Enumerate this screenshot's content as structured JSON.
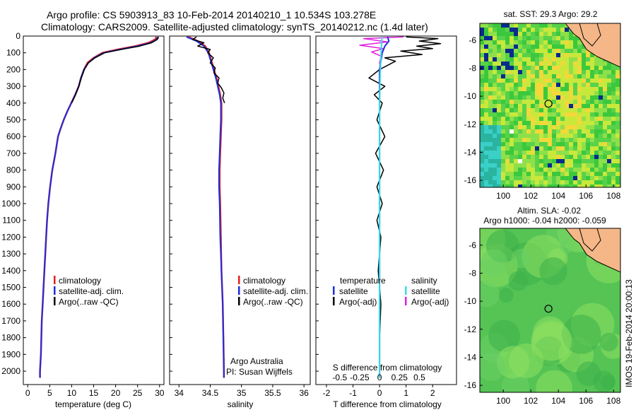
{
  "header": {
    "title_line1": "Argo profile: CS 5903913_83 10-Feb-2014 20140210_1 10.534S 103.278E",
    "title_line2": "Climatology: CARS2009. Satellite-adjusted climatology: synTS_20140212.nc (1.4d later)"
  },
  "side_stamp": "IMOS 19-Feb-2014 20:00:13",
  "colors": {
    "climatology": "#e02020",
    "satellite": "#1c2ee0",
    "argo": "#000000",
    "salinity_satellite": "#33dde6",
    "salinity_argo": "#e020e0",
    "coast": "#f5b787"
  },
  "chart_data": [
    {
      "type": "line",
      "id": "temperature",
      "xlabel": "temperature (deg C)",
      "xlim": [
        -1,
        31
      ],
      "xticks": [
        0,
        5,
        10,
        15,
        20,
        25,
        30
      ],
      "ylim": [
        0,
        2080
      ],
      "yticks": [
        0,
        100,
        200,
        300,
        400,
        500,
        600,
        700,
        800,
        900,
        1000,
        1100,
        1200,
        1300,
        1400,
        1500,
        1600,
        1700,
        1800,
        1900,
        2000
      ],
      "legend": [
        "climatology",
        "satellite-adj. clim.",
        "Argo(..raw -QC)"
      ],
      "series": [
        {
          "name": "climatology",
          "points": [
            [
              29.3,
              5
            ],
            [
              29,
              20
            ],
            [
              27.5,
              40
            ],
            [
              24.5,
              60
            ],
            [
              20.5,
              80
            ],
            [
              17,
              100
            ],
            [
              15,
              130
            ],
            [
              13.6,
              160
            ],
            [
              12.8,
              200
            ],
            [
              12.1,
              250
            ],
            [
              11.6,
              300
            ],
            [
              10.8,
              350
            ],
            [
              9.9,
              400
            ],
            [
              9,
              450
            ],
            [
              8.2,
              500
            ],
            [
              7.5,
              550
            ],
            [
              6.9,
              600
            ],
            [
              6.3,
              700
            ],
            [
              5.6,
              800
            ],
            [
              5.1,
              900
            ],
            [
              4.7,
              1000
            ],
            [
              4.4,
              1100
            ],
            [
              4.2,
              1200
            ],
            [
              4,
              1300
            ],
            [
              3.8,
              1400
            ],
            [
              3.6,
              1500
            ],
            [
              3.4,
              1600
            ],
            [
              3.2,
              1700
            ],
            [
              3.1,
              1800
            ],
            [
              3,
              1900
            ],
            [
              2.8,
              2000
            ],
            [
              2.8,
              2040
            ]
          ]
        },
        {
          "name": "satellite-adj. clim.",
          "points": [
            [
              29.6,
              5
            ],
            [
              29.4,
              20
            ],
            [
              28,
              40
            ],
            [
              25,
              60
            ],
            [
              21,
              80
            ],
            [
              17.3,
              100
            ],
            [
              15.2,
              130
            ],
            [
              13.8,
              160
            ],
            [
              12.8,
              200
            ],
            [
              12.1,
              250
            ],
            [
              11.6,
              300
            ],
            [
              10.8,
              350
            ],
            [
              9.9,
              400
            ],
            [
              9,
              450
            ],
            [
              8.2,
              500
            ],
            [
              7.5,
              550
            ],
            [
              6.9,
              600
            ],
            [
              6.3,
              700
            ],
            [
              5.6,
              800
            ],
            [
              5.1,
              900
            ],
            [
              4.7,
              1000
            ],
            [
              4.4,
              1100
            ],
            [
              4.2,
              1200
            ],
            [
              4,
              1300
            ],
            [
              3.8,
              1400
            ],
            [
              3.6,
              1500
            ],
            [
              3.4,
              1600
            ],
            [
              3.2,
              1700
            ],
            [
              3.1,
              1800
            ],
            [
              3,
              1900
            ],
            [
              2.8,
              2000
            ],
            [
              2.8,
              2040
            ]
          ]
        },
        {
          "name": "Argo(..raw -QC)",
          "points": [
            [
              29.8,
              5
            ],
            [
              29.5,
              20
            ],
            [
              28.2,
              40
            ],
            [
              25.5,
              60
            ],
            [
              21.2,
              80
            ],
            [
              17.5,
              100
            ],
            [
              15.3,
              130
            ],
            [
              13.8,
              160
            ],
            [
              12.9,
              200
            ],
            [
              12.2,
              250
            ],
            [
              11.6,
              300
            ],
            [
              10.9,
              350
            ],
            [
              10,
              400
            ]
          ]
        }
      ]
    },
    {
      "type": "line",
      "id": "salinity",
      "xlabel": "salinity",
      "xlim": [
        33.85,
        36.1
      ],
      "xticks": [
        34,
        34.5,
        35,
        35.5,
        36
      ],
      "ylim": [
        0,
        2080
      ],
      "legend": [
        "climatology",
        "satellite-adj. clim.",
        "Argo(..raw -QC)"
      ],
      "annotations": [
        "Argo Australia",
        "PI: Susan Wijffels"
      ],
      "series": [
        {
          "name": "climatology",
          "points": [
            [
              34.15,
              5
            ],
            [
              34.3,
              30
            ],
            [
              34.42,
              60
            ],
            [
              34.48,
              100
            ],
            [
              34.52,
              150
            ],
            [
              34.56,
              200
            ],
            [
              34.6,
              250
            ],
            [
              34.63,
              300
            ],
            [
              34.66,
              350
            ],
            [
              34.68,
              400
            ],
            [
              34.68,
              500
            ],
            [
              34.67,
              600
            ],
            [
              34.66,
              700
            ],
            [
              34.65,
              800
            ],
            [
              34.65,
              900
            ],
            [
              34.66,
              1000
            ],
            [
              34.67,
              1200
            ],
            [
              34.68,
              1400
            ],
            [
              34.69,
              1500
            ],
            [
              34.7,
              1600
            ],
            [
              34.71,
              1800
            ],
            [
              34.72,
              2000
            ],
            [
              34.72,
              2040
            ]
          ]
        },
        {
          "name": "satellite-adj. clim.",
          "points": [
            [
              34.12,
              5
            ],
            [
              34.28,
              30
            ],
            [
              34.4,
              60
            ],
            [
              34.47,
              100
            ],
            [
              34.51,
              150
            ],
            [
              34.55,
              200
            ],
            [
              34.59,
              250
            ],
            [
              34.62,
              300
            ],
            [
              34.65,
              350
            ],
            [
              34.67,
              400
            ],
            [
              34.67,
              500
            ],
            [
              34.66,
              600
            ],
            [
              34.65,
              700
            ],
            [
              34.64,
              800
            ],
            [
              34.64,
              900
            ],
            [
              34.65,
              1000
            ],
            [
              34.66,
              1200
            ],
            [
              34.68,
              1400
            ],
            [
              34.69,
              1500
            ],
            [
              34.7,
              1600
            ],
            [
              34.71,
              1800
            ],
            [
              34.72,
              2000
            ],
            [
              34.72,
              2040
            ]
          ]
        },
        {
          "name": "Argo(..raw -QC)",
          "points": [
            [
              34.28,
              5
            ],
            [
              34.22,
              20
            ],
            [
              34.4,
              40
            ],
            [
              34.3,
              60
            ],
            [
              34.5,
              80
            ],
            [
              34.46,
              100
            ],
            [
              34.55,
              130
            ],
            [
              34.5,
              160
            ],
            [
              34.58,
              190
            ],
            [
              34.56,
              220
            ],
            [
              34.64,
              250
            ],
            [
              34.62,
              280
            ],
            [
              34.68,
              310
            ],
            [
              34.72,
              340
            ],
            [
              34.7,
              370
            ],
            [
              34.73,
              400
            ]
          ]
        }
      ]
    },
    {
      "type": "line",
      "id": "differences",
      "xlabel": "T difference from climatology",
      "xlabel_top": "S difference from climatology",
      "xlim_T": [
        -2.4,
        2.9
      ],
      "xticks_T": [
        -2,
        -1,
        0,
        1,
        2
      ],
      "xticks_S": [
        -0.5,
        -0.25,
        0,
        0.25,
        0.5
      ],
      "xtick_labels_S": [
        "-0.5",
        "-0.25",
        "0",
        "0.25",
        "0.5"
      ],
      "ylim": [
        0,
        2080
      ],
      "legend_temperature": [
        "temperature",
        "satellite",
        "Argo(-adj)"
      ],
      "legend_salinity": [
        "salinity",
        "satellite",
        "Argo(-adj)"
      ],
      "series": [
        {
          "name": "T satellite",
          "axis": "T",
          "points": [
            [
              0.3,
              5
            ],
            [
              0.35,
              30
            ],
            [
              0.2,
              60
            ],
            [
              0.1,
              100
            ],
            [
              0.05,
              150
            ],
            [
              0,
              200
            ],
            [
              0,
              400
            ],
            [
              0,
              800
            ],
            [
              0,
              1200
            ],
            [
              0,
              1600
            ],
            [
              0,
              2000
            ],
            [
              0,
              2040
            ]
          ]
        },
        {
          "name": "T Argo(-adj)",
          "axis": "T",
          "points": [
            [
              1.0,
              5
            ],
            [
              2.2,
              15
            ],
            [
              1.5,
              30
            ],
            [
              2.3,
              45
            ],
            [
              1.4,
              60
            ],
            [
              2.0,
              75
            ],
            [
              0.8,
              90
            ],
            [
              1.6,
              110
            ],
            [
              0.2,
              130
            ],
            [
              0.6,
              150
            ],
            [
              0,
              200
            ],
            [
              -0.4,
              250
            ],
            [
              0.2,
              300
            ],
            [
              -0.2,
              350
            ],
            [
              0.1,
              400
            ],
            [
              -0.1,
              500
            ],
            [
              0.2,
              600
            ],
            [
              -0.15,
              700
            ],
            [
              0.15,
              800
            ],
            [
              -0.1,
              900
            ],
            [
              0.1,
              1000
            ],
            [
              -0.1,
              1100
            ],
            [
              0.05,
              1200
            ],
            [
              -0.05,
              1400
            ],
            [
              0.05,
              1600
            ],
            [
              0,
              1800
            ],
            [
              0,
              2000
            ]
          ]
        },
        {
          "name": "S satellite",
          "axis": "S",
          "points": [
            [
              0.03,
              5
            ],
            [
              0.02,
              100
            ],
            [
              0.01,
              200
            ],
            [
              0,
              400
            ],
            [
              0,
              800
            ],
            [
              0,
              1200
            ],
            [
              0,
              1600
            ],
            [
              0,
              2000
            ],
            [
              0,
              2040
            ]
          ]
        },
        {
          "name": "S Argo(-adj)",
          "axis": "S",
          "points": [
            [
              0.3,
              5
            ],
            [
              -0.2,
              15
            ],
            [
              0.1,
              35
            ],
            [
              -0.25,
              55
            ],
            [
              0.05,
              75
            ],
            [
              -0.1,
              95
            ],
            [
              0.02,
              120
            ],
            [
              0,
              160
            ],
            [
              0.02,
              200
            ]
          ]
        }
      ]
    }
  ],
  "maps": {
    "sst": {
      "title": "sat. SST: 29.3 Argo: 29.2",
      "yticks": [
        -6,
        -8,
        -10,
        -12,
        -14,
        -16
      ],
      "xticks": [
        100,
        102,
        104,
        106,
        108
      ],
      "xlim": [
        98.3,
        108.5
      ],
      "ylim": [
        -16.5,
        -4.8
      ],
      "argo_position": [
        103.278,
        -10.534
      ]
    },
    "sla": {
      "title_line1": "Altim. SLA: -0.02",
      "title_line2": "Argo h1000: -0.04 h2000: -0.059",
      "yticks": [
        -6,
        -8,
        -10,
        -12,
        -14,
        -16
      ],
      "xticks": [
        100,
        102,
        104,
        106,
        108
      ],
      "xlim": [
        98.3,
        108.5
      ],
      "ylim": [
        -16.5,
        -4.8
      ],
      "argo_position": [
        103.278,
        -10.534
      ]
    }
  }
}
